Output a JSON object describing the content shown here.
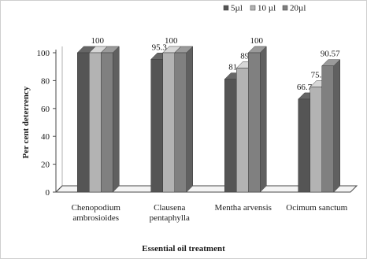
{
  "chart_data": {
    "type": "bar",
    "style": "3d-clustered-column",
    "title": "",
    "xlabel": "Essential oil treatment",
    "ylabel": "Per cent deterrency",
    "ylim": [
      0,
      100
    ],
    "yticks": [
      0,
      20,
      40,
      60,
      80,
      100
    ],
    "grid": false,
    "legend_position": "top-right",
    "categories": [
      [
        "Chenopodium",
        "ambrosioides"
      ],
      [
        "Clausena",
        "pentaphylla"
      ],
      [
        "Mentha arvensis"
      ],
      [
        "Ocimum sanctum"
      ]
    ],
    "series": [
      {
        "name": "5µl",
        "color": "#555555",
        "values": [
          100,
          95.3,
          81,
          66.71
        ],
        "labels": [
          "",
          "95.3",
          "81",
          "66.71"
        ]
      },
      {
        "name": "10 µl",
        "color": "#b3b3b3",
        "values": [
          100,
          100,
          89,
          75.4
        ],
        "labels": [
          "100",
          "100",
          "89",
          "75.4"
        ]
      },
      {
        "name": "20µl",
        "color": "#808080",
        "values": [
          100,
          100,
          100,
          90.57
        ],
        "labels": [
          "",
          "",
          "100",
          "90.57"
        ]
      }
    ]
  }
}
